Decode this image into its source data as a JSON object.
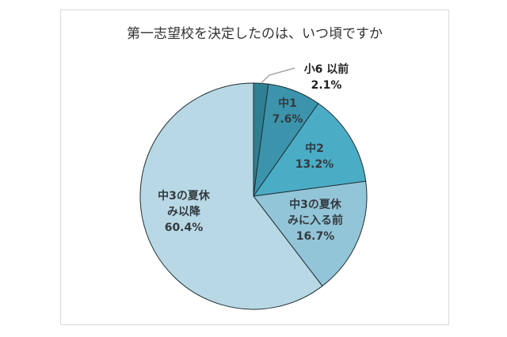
{
  "chart_data": {
    "type": "pie",
    "title": "第一志望校を決定したのは、いつ頃ですか",
    "start": "top",
    "direction": "clockwise",
    "slices": [
      {
        "label_lines": [
          "小6 以前"
        ],
        "value": 2.1,
        "value_label": "2.1%",
        "color": "#2f7f93",
        "label_outside": true
      },
      {
        "label_lines": [
          "中1"
        ],
        "value": 7.6,
        "value_label": "7.6%",
        "color": "#3b94ab"
      },
      {
        "label_lines": [
          "中2"
        ],
        "value": 13.2,
        "value_label": "13.2%",
        "color": "#4bacc6"
      },
      {
        "label_lines": [
          "中3の夏休",
          "みに入る前"
        ],
        "value": 16.7,
        "value_label": "16.7%",
        "color": "#93c5d8"
      },
      {
        "label_lines": [
          "中3の夏休",
          "み以降"
        ],
        "value": 60.4,
        "value_label": "60.4%",
        "color": "#b9d8e5"
      }
    ]
  }
}
